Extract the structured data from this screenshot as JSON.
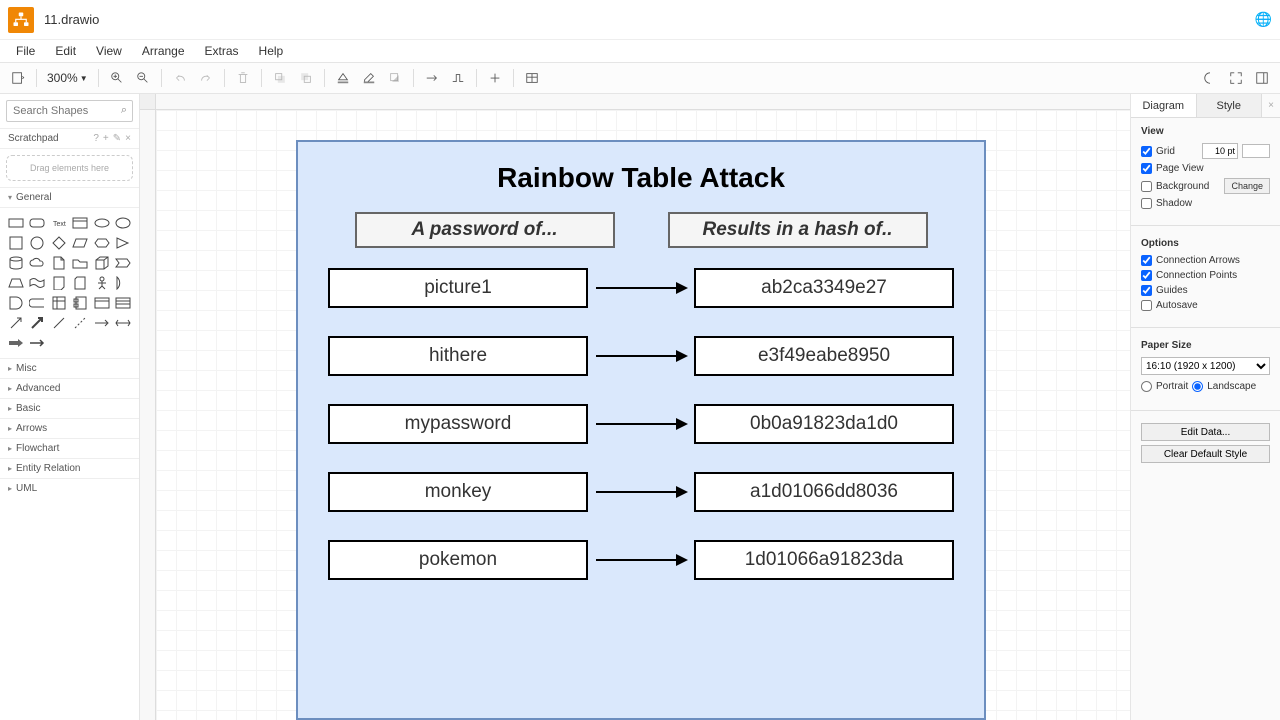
{
  "app": {
    "title": "11.drawio"
  },
  "menu": {
    "items": [
      "File",
      "Edit",
      "View",
      "Arrange",
      "Extras",
      "Help"
    ]
  },
  "toolbar": {
    "zoom": "300%"
  },
  "leftPanel": {
    "searchPlaceholder": "Search Shapes",
    "scratchpad": {
      "label": "Scratchpad",
      "dragHint": "Drag elements here"
    },
    "generalLabel": "General",
    "categories": [
      "Misc",
      "Advanced",
      "Basic",
      "Arrows",
      "Flowchart",
      "Entity Relation",
      "UML"
    ]
  },
  "diagram": {
    "container_bg": "#dae8fc",
    "container_border": "#6c8ebf",
    "title": "Rainbow Table Attack",
    "header_left": "A password of...",
    "header_right": "Results in a hash of..",
    "header_bg": "#f5f5f5",
    "header_border": "#666666",
    "cell_bg": "#ffffff",
    "cell_border": "#000000",
    "arrow_color": "#000000",
    "rows": [
      {
        "password": "picture1",
        "hash": "ab2ca3349e27"
      },
      {
        "password": "hithere",
        "hash": "e3f49eabe8950"
      },
      {
        "password": "mypassword",
        "hash": "0b0a91823da1d0"
      },
      {
        "password": "monkey",
        "hash": "a1d01066dd8036"
      },
      {
        "password": "pokemon",
        "hash": "1d01066a91823da"
      }
    ]
  },
  "rightPanel": {
    "tabs": {
      "diagram": "Diagram",
      "style": "Style"
    },
    "view": {
      "title": "View",
      "grid": {
        "label": "Grid",
        "checked": true,
        "value": "10 pt"
      },
      "pageView": {
        "label": "Page View",
        "checked": true
      },
      "background": {
        "label": "Background",
        "checked": false,
        "btn": "Change"
      },
      "shadow": {
        "label": "Shadow",
        "checked": false
      }
    },
    "options": {
      "title": "Options",
      "connectionArrows": {
        "label": "Connection Arrows",
        "checked": true
      },
      "connectionPoints": {
        "label": "Connection Points",
        "checked": true
      },
      "guides": {
        "label": "Guides",
        "checked": true
      },
      "autosave": {
        "label": "Autosave",
        "checked": false
      }
    },
    "paperSize": {
      "title": "Paper Size",
      "value": "16:10 (1920 x 1200)",
      "portrait": "Portrait",
      "landscape": "Landscape",
      "landscapeSelected": true
    },
    "buttons": {
      "editData": "Edit Data...",
      "clearStyle": "Clear Default Style"
    }
  }
}
